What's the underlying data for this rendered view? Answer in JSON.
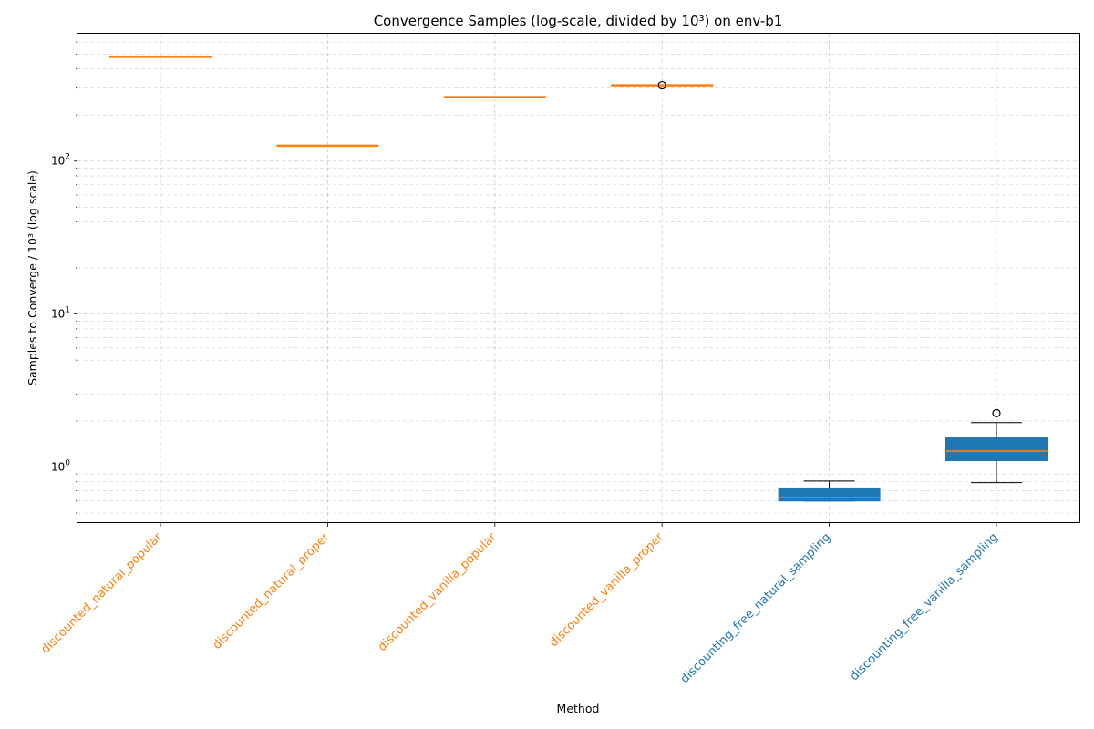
{
  "chart_data": {
    "type": "box",
    "title": "Convergence Samples (log-scale, divided by 10³) on env-b1",
    "xlabel": "Method",
    "ylabel": "Samples to Converge / 10³ (log scale)",
    "yscale": "log",
    "ylim": [
      0.43,
      680
    ],
    "yticks": [
      {
        "value": 1,
        "label": "10",
        "exp": "0"
      },
      {
        "value": 10,
        "label": "10",
        "exp": "1"
      },
      {
        "value": 100,
        "label": "10",
        "exp": "2"
      }
    ],
    "grid": true,
    "colors": {
      "discounted": "#ff7f0e",
      "discounting_free": "#1f77b4",
      "median_discounted": "#ff7f0e",
      "median_free": "#ff7f0e"
    },
    "categories": [
      {
        "name": "discounted_natural_popular",
        "group": "discounted",
        "min": 480,
        "q1": 480,
        "median": 480,
        "q3": 480,
        "max": 480,
        "outliers": []
      },
      {
        "name": "discounted_natural_proper",
        "group": "discounted",
        "min": 126,
        "q1": 126,
        "median": 126,
        "q3": 126,
        "max": 126,
        "outliers": []
      },
      {
        "name": "discounted_vanilla_popular",
        "group": "discounted",
        "min": 262,
        "q1": 262,
        "median": 262,
        "q3": 262,
        "max": 262,
        "outliers": []
      },
      {
        "name": "discounted_vanilla_proper",
        "group": "discounted",
        "min": 313,
        "q1": 313,
        "median": 313,
        "q3": 313,
        "max": 313,
        "outliers": [
          313
        ]
      },
      {
        "name": "discounting_free_natural_sampling",
        "group": "discounting_free",
        "min": 0.6,
        "q1": 0.6,
        "median": 0.63,
        "q3": 0.73,
        "max": 0.81,
        "outliers": []
      },
      {
        "name": "discounting_free_vanilla_sampling",
        "group": "discounting_free",
        "min": 0.79,
        "q1": 1.1,
        "median": 1.27,
        "q3": 1.55,
        "max": 1.95,
        "outliers": [
          2.25
        ]
      }
    ]
  }
}
